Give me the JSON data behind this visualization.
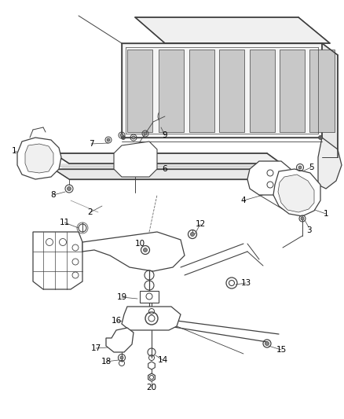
{
  "bg_color": "#ffffff",
  "line_color": "#404040",
  "label_color": "#000000",
  "figsize": [
    4.38,
    5.33
  ],
  "dpi": 100,
  "lw_main": 0.9,
  "lw_thin": 0.55,
  "lw_thick": 1.1
}
